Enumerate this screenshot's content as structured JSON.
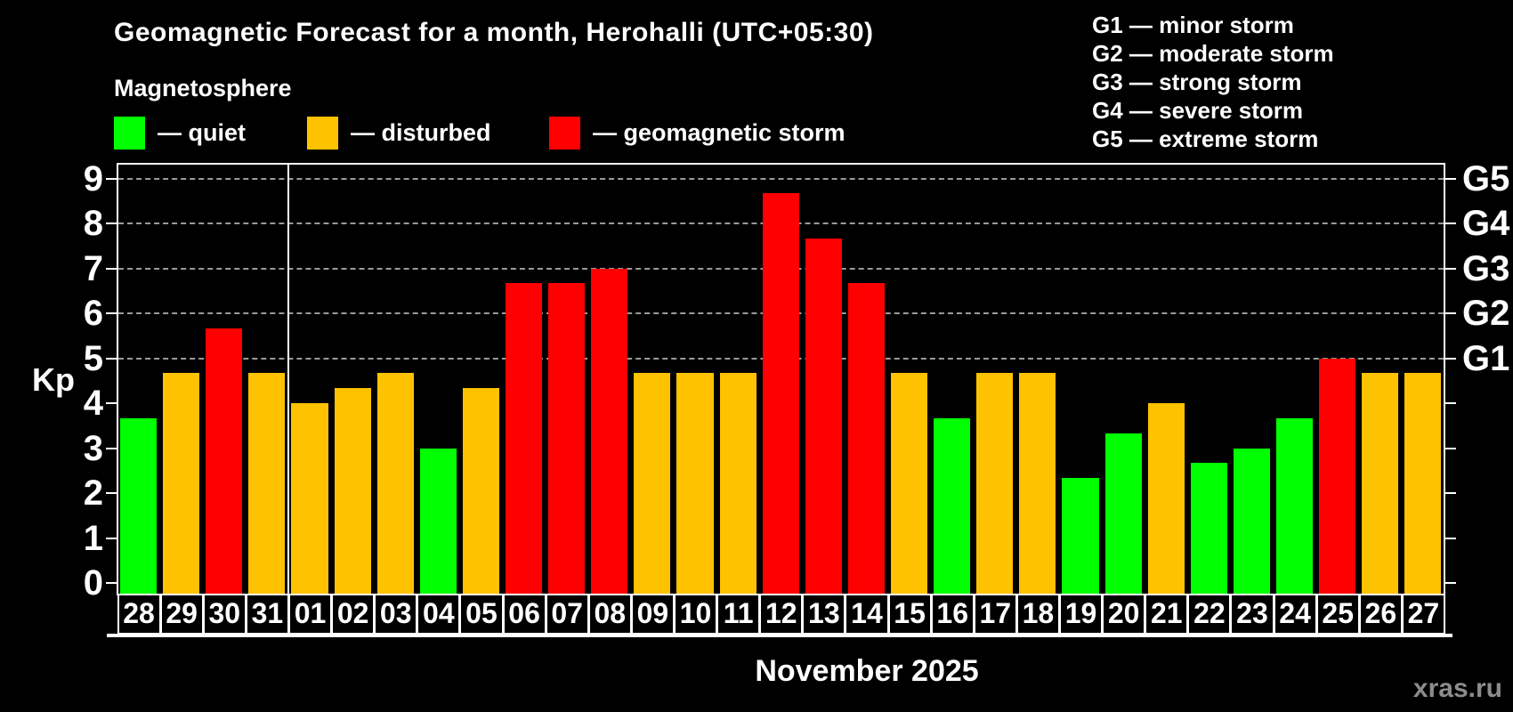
{
  "header": {
    "title": "Geomagnetic Forecast for a month, Herohalli (UTC+05:30)",
    "subtitle": "Magnetosphere"
  },
  "legend": {
    "items": [
      {
        "key": "quiet",
        "label": "— quiet",
        "color": "#00ff00"
      },
      {
        "key": "disturbed",
        "label": "— disturbed",
        "color": "#ffc200"
      },
      {
        "key": "storm",
        "label": "— geomagnetic storm",
        "color": "#ff0000"
      }
    ]
  },
  "g_legend": [
    "G1 — minor storm",
    "G2 — moderate storm",
    "G3 — strong storm",
    "G4 — severe storm",
    "G5 — extreme storm"
  ],
  "footer": {
    "month_label": "November 2025",
    "watermark": "xras.ru"
  },
  "chart_data": {
    "type": "bar",
    "title": "Geomagnetic Forecast for a month, Herohalli (UTC+05:30)",
    "subtitle": "Magnetosphere",
    "xlabel": "November 2025",
    "ylabel": "Kp",
    "ylim": [
      0,
      9
    ],
    "grid": "dashed horizontal at Kp 5-9 only",
    "legend_position": "top",
    "categories": [
      "28",
      "29",
      "30",
      "31",
      "01",
      "02",
      "03",
      "04",
      "05",
      "06",
      "07",
      "08",
      "09",
      "10",
      "11",
      "12",
      "13",
      "14",
      "15",
      "16",
      "17",
      "18",
      "19",
      "20",
      "21",
      "22",
      "23",
      "24",
      "25",
      "26",
      "27"
    ],
    "values": [
      3.67,
      4.67,
      5.67,
      4.67,
      4.0,
      4.33,
      4.67,
      3.0,
      4.33,
      6.67,
      6.67,
      7.0,
      4.67,
      4.67,
      4.67,
      8.67,
      7.67,
      6.67,
      4.67,
      3.67,
      4.67,
      4.67,
      2.33,
      3.33,
      4.0,
      2.67,
      3.0,
      3.67,
      5.0,
      4.67,
      4.67
    ],
    "levels": [
      "quiet",
      "disturbed",
      "storm",
      "disturbed",
      "disturbed",
      "disturbed",
      "disturbed",
      "quiet",
      "disturbed",
      "storm",
      "storm",
      "storm",
      "disturbed",
      "disturbed",
      "disturbed",
      "storm",
      "storm",
      "storm",
      "disturbed",
      "quiet",
      "disturbed",
      "disturbed",
      "quiet",
      "quiet",
      "disturbed",
      "quiet",
      "quiet",
      "quiet",
      "storm",
      "disturbed",
      "disturbed"
    ],
    "level_colors": {
      "quiet": "#00ff00",
      "disturbed": "#ffc200",
      "storm": "#ff0000"
    },
    "left_axis_ticks": [
      0,
      1,
      2,
      3,
      4,
      5,
      6,
      7,
      8,
      9
    ],
    "right_axis_labels": [
      {
        "kp": 5,
        "label": "G1"
      },
      {
        "kp": 6,
        "label": "G2"
      },
      {
        "kp": 7,
        "label": "G3"
      },
      {
        "kp": 8,
        "label": "G4"
      },
      {
        "kp": 9,
        "label": "G5"
      }
    ],
    "month_boundary_after_category": "31"
  }
}
